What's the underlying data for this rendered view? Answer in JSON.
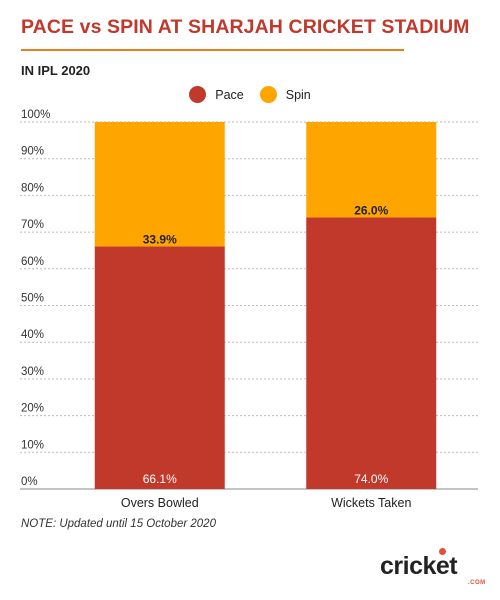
{
  "header": {
    "title": "PACE vs SPIN AT SHARJAH CRICKET STADIUM",
    "subtitle": "IN IPL 2020"
  },
  "footer": {
    "note": "NOTE: Updated until 15 October 2020",
    "logo_text": "cricket",
    "logo_sub": ".COM"
  },
  "colors": {
    "pace": "#c0392b",
    "spin": "#ffa500",
    "accent": "#e67e22"
  },
  "chart_data": {
    "type": "bar",
    "stacked": true,
    "title": "PACE vs SPIN AT SHARJAH CRICKET STADIUM",
    "subtitle": "IN IPL 2020",
    "categories": [
      "Overs Bowled",
      "Wickets Taken"
    ],
    "series": [
      {
        "name": "Pace",
        "values": [
          66.1,
          74.0
        ],
        "labels": [
          "66.1%",
          "74.0%"
        ],
        "color": "#c0392b"
      },
      {
        "name": "Spin",
        "values": [
          33.9,
          26.0
        ],
        "labels": [
          "33.9%",
          "26.0%"
        ],
        "color": "#ffa500"
      }
    ],
    "yticks": [
      "0%",
      "10%",
      "20%",
      "30%",
      "40%",
      "50%",
      "60%",
      "70%",
      "80%",
      "90%",
      "100%"
    ],
    "ylim": [
      0,
      100
    ],
    "grid": true,
    "legend_position": "top-center"
  }
}
